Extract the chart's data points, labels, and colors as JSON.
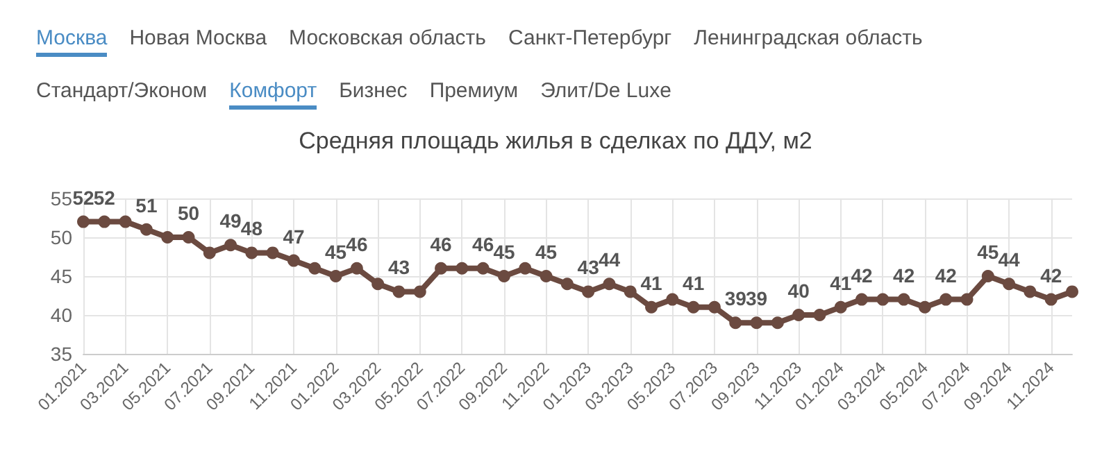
{
  "chart_data": {
    "type": "line",
    "title": "Средняя площадь жилья в сделках по ДДУ, м2",
    "annotations": [
      "Москва",
      "Новая Москва",
      "Московская область",
      "Санкт-Петербург",
      "Ленинградская область",
      "Стандарт/Эконом",
      "Комфорт",
      "Бизнес",
      "Премиум",
      "Элит/De Luxe"
    ],
    "categories": [
      "01.2021",
      null,
      "03.2021",
      null,
      "05.2021",
      null,
      "07.2021",
      null,
      "09.2021",
      null,
      "11.2021",
      null,
      "01.2022",
      null,
      "03.2022",
      null,
      "05.2022",
      null,
      "07.2022",
      null,
      "09.2022",
      null,
      "11.2022",
      null,
      "01.2023",
      null,
      "03.2023",
      null,
      "05.2023",
      null,
      "07.2023",
      null,
      "09.2023",
      null,
      "11.2023",
      null,
      "01.2024",
      null,
      "03.2024",
      null,
      "05.2024",
      null,
      "07.2024",
      null,
      "09.2024",
      null,
      "11.2024",
      null
    ],
    "series": [
      {
        "color": "#6b4a40",
        "values": [
          52,
          52,
          52,
          51,
          50,
          50,
          48,
          49,
          48,
          48,
          47,
          46,
          45,
          46,
          44,
          43,
          43,
          46,
          46,
          46,
          45,
          46,
          45,
          44,
          43,
          44,
          43,
          41,
          42,
          41,
          41,
          39,
          39,
          39,
          40,
          40,
          41,
          42,
          42,
          42,
          41,
          42,
          42,
          45,
          44,
          43,
          42,
          43
        ],
        "value_labels": [
          "52",
          "52",
          null,
          "51",
          null,
          "50",
          null,
          "49",
          "48",
          null,
          "47",
          null,
          "45",
          "46",
          null,
          "43",
          null,
          "46",
          null,
          "46",
          "45",
          null,
          "45",
          null,
          "43",
          "44",
          null,
          "41",
          null,
          "41",
          null,
          "39",
          "39",
          null,
          "40",
          null,
          "41",
          "42",
          null,
          "42",
          null,
          "42",
          null,
          "45",
          "44",
          null,
          "42",
          null
        ]
      }
    ],
    "ylim": [
      35,
      55
    ],
    "yticks": [
      35,
      40,
      45,
      50,
      55
    ],
    "grid": true,
    "marker": "circle",
    "line_style": "solid"
  }
}
